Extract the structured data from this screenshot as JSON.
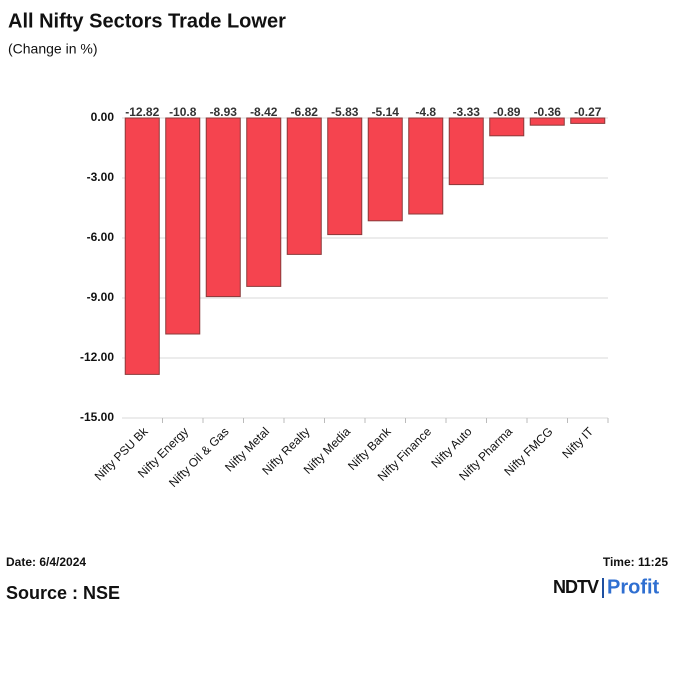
{
  "chart_data": {
    "type": "bar",
    "title": "All Nifty Sectors Trade Lower",
    "subtitle": "(Change in %)",
    "categories": [
      "Nifty PSU Bk",
      "Nifty Energy",
      "Nifty Oil & Gas",
      "Nifty Metal",
      "Nifty Realty",
      "Nifty Media",
      "Nifty Bank",
      "Nifty Finance",
      "Nifty Auto",
      "Nifty Pharma",
      "Nifty FMCG",
      "Nifty IT"
    ],
    "values": [
      -12.82,
      -10.8,
      -8.93,
      -8.42,
      -6.82,
      -5.83,
      -5.14,
      -4.8,
      -3.33,
      -0.89,
      -0.36,
      -0.27
    ],
    "color": "#f5444f",
    "ylim": [
      -15,
      0
    ],
    "yticks": [
      {
        "value": 0,
        "label": "0.00"
      },
      {
        "value": -3,
        "label": "-3.00"
      },
      {
        "value": -6,
        "label": "-6.00"
      },
      {
        "value": -9,
        "label": "-9.00"
      },
      {
        "value": -12,
        "label": "-12.00"
      },
      {
        "value": -15,
        "label": "-15.00"
      }
    ],
    "grid": true
  },
  "footer": {
    "date": "Date: 6/4/2024",
    "time": "Time: 11:25",
    "source": "Source : NSE",
    "logo_left": "NDTV",
    "logo_right": "Profit"
  }
}
